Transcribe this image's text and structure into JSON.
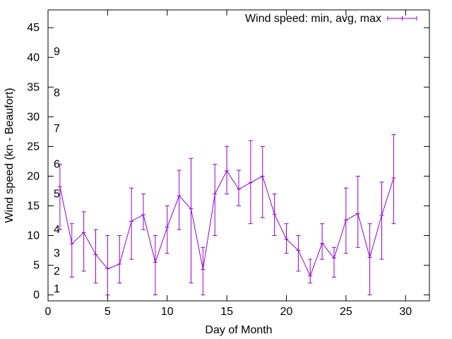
{
  "chart_data": {
    "type": "line",
    "xlabel": "Day of Month",
    "ylabel": "Wind speed (kn - Beaufort)",
    "xlim": [
      0,
      32
    ],
    "ylim": [
      -1,
      48
    ],
    "xticks": [
      0,
      5,
      10,
      15,
      20,
      25,
      30
    ],
    "yticks": [
      0,
      5,
      10,
      15,
      20,
      25,
      30,
      35,
      40,
      45
    ],
    "grid": false,
    "legend_position": "top-right",
    "series": [
      {
        "name": "Wind speed: min, avg, max",
        "color": "#9400d3",
        "points": [
          {
            "x": 1,
            "avg": 18.2,
            "min": 11,
            "max": 22
          },
          {
            "x": 2,
            "avg": 8.6,
            "min": 3,
            "max": 12
          },
          {
            "x": 3,
            "avg": 10.5,
            "min": 4,
            "max": 14
          },
          {
            "x": 4,
            "avg": 6.8,
            "min": 2,
            "max": 11
          },
          {
            "x": 5,
            "avg": 4.4,
            "min": 0,
            "max": 10
          },
          {
            "x": 6,
            "avg": 5.2,
            "min": 2,
            "max": 10
          },
          {
            "x": 7,
            "avg": 12.4,
            "min": 6,
            "max": 18
          },
          {
            "x": 8,
            "avg": 13.5,
            "min": 11,
            "max": 17
          },
          {
            "x": 9,
            "avg": 5.5,
            "min": 0,
            "max": 10
          },
          {
            "x": 10,
            "avg": 11.4,
            "min": 7,
            "max": 15
          },
          {
            "x": 11,
            "avg": 16.7,
            "min": 11,
            "max": 21
          },
          {
            "x": 12,
            "avg": 14.5,
            "min": 2,
            "max": 23
          },
          {
            "x": 13,
            "avg": 4.3,
            "min": 0,
            "max": 8
          },
          {
            "x": 14,
            "avg": 17.0,
            "min": 10,
            "max": 22
          },
          {
            "x": 15,
            "avg": 20.9,
            "min": 17,
            "max": 25
          },
          {
            "x": 16,
            "avg": 17.8,
            "min": 15,
            "max": 21
          },
          {
            "x": 17,
            "avg": 18.9,
            "min": 12,
            "max": 26
          },
          {
            "x": 18,
            "avg": 20.0,
            "min": 13,
            "max": 25
          },
          {
            "x": 19,
            "avg": 13.6,
            "min": 10,
            "max": 17
          },
          {
            "x": 20,
            "avg": 9.4,
            "min": 7,
            "max": 12
          },
          {
            "x": 21,
            "avg": 7.5,
            "min": 4,
            "max": 10
          },
          {
            "x": 22,
            "avg": 3.2,
            "min": 2,
            "max": 6
          },
          {
            "x": 23,
            "avg": 8.7,
            "min": 6,
            "max": 12
          },
          {
            "x": 24,
            "avg": 6.2,
            "min": 3,
            "max": 8
          },
          {
            "x": 25,
            "avg": 12.6,
            "min": 7,
            "max": 18
          },
          {
            "x": 26,
            "avg": 13.7,
            "min": 8,
            "max": 20
          },
          {
            "x": 27,
            "avg": 6.3,
            "min": 0,
            "max": 12
          },
          {
            "x": 28,
            "avg": 13.4,
            "min": 6,
            "max": 19
          },
          {
            "x": 29,
            "avg": 19.7,
            "min": 12,
            "max": 27
          }
        ]
      }
    ],
    "annotations": [
      {
        "text": "1",
        "y": 1
      },
      {
        "text": "2",
        "y": 4
      },
      {
        "text": "3",
        "y": 7
      },
      {
        "text": "4",
        "y": 11
      },
      {
        "text": "5",
        "y": 17
      },
      {
        "text": "6",
        "y": 22
      },
      {
        "text": "7",
        "y": 28
      },
      {
        "text": "8",
        "y": 34
      },
      {
        "text": "9",
        "y": 41
      }
    ]
  }
}
